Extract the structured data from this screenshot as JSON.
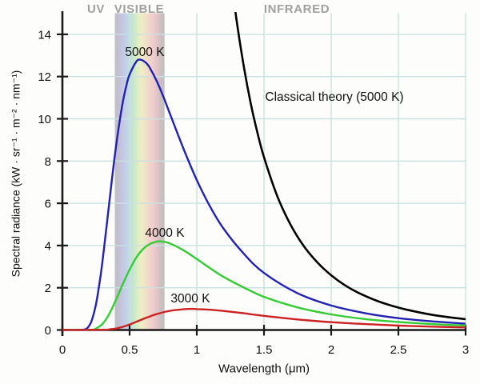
{
  "regions": {
    "uv": "UV",
    "visible": "VISIBLE",
    "infrared": "INFRARED"
  },
  "colors": {
    "background": "#fdfdfb",
    "grid": "#c9e1e1",
    "axis": "#1a1a1a",
    "region_label": "#a0a0a0",
    "text": "#111111"
  },
  "visible_band": {
    "range_um": [
      0.39,
      0.76
    ],
    "gradient": [
      [
        "0%",
        "#c1c1c4"
      ],
      [
        "6%",
        "#c1bfce"
      ],
      [
        "13%",
        "#c5c3de"
      ],
      [
        "21%",
        "#c2cfe8"
      ],
      [
        "29%",
        "#c2dce0"
      ],
      [
        "37%",
        "#c6e6cc"
      ],
      [
        "45%",
        "#d9edc6"
      ],
      [
        "53%",
        "#edeec5"
      ],
      [
        "61%",
        "#f1e2c6"
      ],
      [
        "69%",
        "#f3d6ca"
      ],
      [
        "77%",
        "#f0cdce"
      ],
      [
        "85%",
        "#e0c4c7"
      ],
      [
        "93%",
        "#cbbfc1"
      ],
      [
        "100%",
        "#c0c0c0"
      ]
    ]
  },
  "chart_data": {
    "type": "line",
    "title": "",
    "xlabel": "Wavelength (μm)",
    "ylabel": "Spectral radiance (kW · sr⁻¹ · m⁻² · nm⁻¹)",
    "xlim": [
      0,
      3
    ],
    "ylim": [
      0,
      15
    ],
    "grid": true,
    "legend_position": "inline-curve-labels",
    "x_ticks": [
      0,
      0.5,
      1,
      1.5,
      2,
      2.5,
      3
    ],
    "x_tick_labels": [
      "0",
      "0.5",
      "1",
      "1.5",
      "2",
      "2.5",
      "3"
    ],
    "y_ticks": [
      0,
      2,
      4,
      6,
      8,
      10,
      12,
      14
    ],
    "y_tick_labels": [
      "0",
      "2",
      "4",
      "6",
      "8",
      "10",
      "12",
      "14"
    ],
    "series": [
      {
        "name": "5000 K",
        "color": "#2222b2",
        "peak": {
          "x_um": 0.58,
          "value": 12.8
        },
        "points": [
          [
            0,
            0
          ],
          [
            0.12,
            0
          ],
          [
            0.16,
            0.02
          ],
          [
            0.18,
            0.06
          ],
          [
            0.2,
            0.21
          ],
          [
            0.22,
            0.48
          ],
          [
            0.25,
            1.22
          ],
          [
            0.28,
            2.38
          ],
          [
            0.3,
            3.35
          ],
          [
            0.33,
            4.97
          ],
          [
            0.35,
            6.1
          ],
          [
            0.38,
            7.74
          ],
          [
            0.4,
            8.74
          ],
          [
            0.42,
            9.65
          ],
          [
            0.45,
            10.81
          ],
          [
            0.48,
            11.67
          ],
          [
            0.5,
            12.1
          ],
          [
            0.55,
            12.71
          ],
          [
            0.58,
            12.8
          ],
          [
            0.62,
            12.66
          ],
          [
            0.65,
            12.42
          ],
          [
            0.7,
            11.81
          ],
          [
            0.75,
            11.07
          ],
          [
            0.8,
            10.24
          ],
          [
            0.9,
            8.6
          ],
          [
            1.0,
            7.1
          ],
          [
            1.1,
            5.83
          ],
          [
            1.2,
            4.79
          ],
          [
            1.35,
            3.61
          ],
          [
            1.5,
            2.7
          ],
          [
            1.75,
            1.74
          ],
          [
            2.0,
            1.16
          ],
          [
            2.25,
            0.8
          ],
          [
            2.5,
            0.56
          ],
          [
            2.75,
            0.41
          ],
          [
            3.0,
            0.3
          ]
        ]
      },
      {
        "name": "4000 K",
        "color": "#33cc33",
        "peak": {
          "x_um": 0.72,
          "value": 4.2
        },
        "points": [
          [
            0,
            0
          ],
          [
            0.2,
            0
          ],
          [
            0.25,
            0.07
          ],
          [
            0.3,
            0.3
          ],
          [
            0.35,
            0.78
          ],
          [
            0.4,
            1.45
          ],
          [
            0.45,
            2.18
          ],
          [
            0.5,
            2.86
          ],
          [
            0.55,
            3.43
          ],
          [
            0.6,
            3.83
          ],
          [
            0.65,
            4.07
          ],
          [
            0.7,
            4.18
          ],
          [
            0.72,
            4.2
          ],
          [
            0.75,
            4.18
          ],
          [
            0.8,
            4.1
          ],
          [
            0.9,
            3.78
          ],
          [
            1.0,
            3.36
          ],
          [
            1.1,
            2.92
          ],
          [
            1.2,
            2.51
          ],
          [
            1.35,
            2.01
          ],
          [
            1.5,
            1.57
          ],
          [
            1.75,
            1.07
          ],
          [
            2.0,
            0.74
          ],
          [
            2.25,
            0.52
          ],
          [
            2.5,
            0.38
          ],
          [
            2.75,
            0.28
          ],
          [
            3.0,
            0.21
          ]
        ]
      },
      {
        "name": "3000 K",
        "color": "#cc2222",
        "peak": {
          "x_um": 0.97,
          "value": 1.0
        },
        "points": [
          [
            0,
            0
          ],
          [
            0.3,
            0.01
          ],
          [
            0.35,
            0.03
          ],
          [
            0.4,
            0.07
          ],
          [
            0.45,
            0.15
          ],
          [
            0.5,
            0.26
          ],
          [
            0.55,
            0.39
          ],
          [
            0.6,
            0.52
          ],
          [
            0.65,
            0.64
          ],
          [
            0.7,
            0.75
          ],
          [
            0.8,
            0.91
          ],
          [
            0.9,
            0.98
          ],
          [
            0.97,
            1.0
          ],
          [
            1.0,
            0.99
          ],
          [
            1.1,
            0.96
          ],
          [
            1.2,
            0.9
          ],
          [
            1.35,
            0.79
          ],
          [
            1.5,
            0.67
          ],
          [
            1.75,
            0.5
          ],
          [
            2.0,
            0.37
          ],
          [
            2.25,
            0.28
          ],
          [
            2.5,
            0.21
          ],
          [
            2.75,
            0.16
          ],
          [
            3.0,
            0.12
          ]
        ]
      },
      {
        "name": "Classical theory (5000 K)",
        "color": "#000000",
        "points": [
          [
            1.27,
            15.9
          ],
          [
            1.3,
            14.49
          ],
          [
            1.35,
            12.47
          ],
          [
            1.4,
            10.77
          ],
          [
            1.45,
            9.37
          ],
          [
            1.5,
            8.18
          ],
          [
            1.6,
            6.32
          ],
          [
            1.7,
            4.96
          ],
          [
            1.8,
            3.94
          ],
          [
            1.9,
            3.18
          ],
          [
            2.0,
            2.59
          ],
          [
            2.1,
            2.13
          ],
          [
            2.2,
            1.77
          ],
          [
            2.35,
            1.36
          ],
          [
            2.5,
            1.06
          ],
          [
            2.65,
            0.84
          ],
          [
            2.8,
            0.67
          ],
          [
            3.0,
            0.51
          ]
        ]
      }
    ]
  }
}
